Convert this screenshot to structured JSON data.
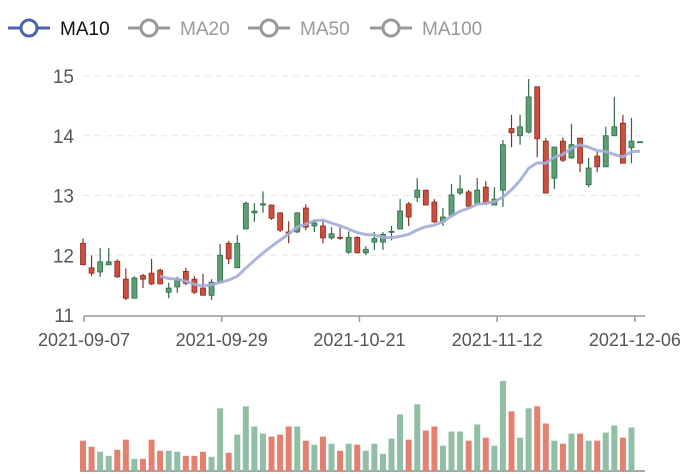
{
  "chart_data": {
    "type": "candlestick",
    "legend": {
      "placement": "top-left",
      "items": [
        {
          "name": "MA10",
          "active": true,
          "color": "#4a64ad"
        },
        {
          "name": "MA20",
          "active": false,
          "color": "#999999"
        },
        {
          "name": "MA50",
          "active": false,
          "color": "#999999"
        },
        {
          "name": "MA100",
          "active": false,
          "color": "#999999"
        }
      ]
    },
    "x_tick_labels": [
      {
        "index": 0,
        "label": "2021-09-07"
      },
      {
        "index": 16,
        "label": "2021-09-29"
      },
      {
        "index": 32,
        "label": "2021-10-21"
      },
      {
        "index": 48,
        "label": "2021-11-12"
      },
      {
        "index": 64,
        "label": "2021-12-06"
      }
    ],
    "y_axis": {
      "min": 11,
      "max": 15,
      "ticks": [
        "11",
        "12",
        "13",
        "14",
        "15"
      ],
      "grid": "dashed"
    },
    "colors": {
      "up": "#5e9e74",
      "up_border": "#2f6a45",
      "down": "#cc4f3d",
      "down_border": "#8a2e22",
      "volume_up": "#91bfa5",
      "volume_down": "#e3806f",
      "ma10": "#a3add8"
    },
    "candles_ohlc": [
      [
        12.2,
        11.84,
        12.28,
        11.84
      ],
      [
        11.79,
        11.7,
        12.0,
        11.65
      ],
      [
        11.72,
        11.89,
        12.12,
        11.64
      ],
      [
        11.84,
        11.89,
        12.12,
        11.84
      ],
      [
        11.9,
        11.64,
        11.93,
        11.62
      ],
      [
        11.6,
        11.28,
        11.78,
        11.25
      ],
      [
        11.28,
        11.62,
        11.65,
        11.28
      ],
      [
        11.66,
        11.6,
        11.69,
        11.45
      ],
      [
        11.7,
        11.52,
        11.94,
        11.5
      ],
      [
        11.75,
        11.52,
        11.78,
        11.52
      ],
      [
        11.38,
        11.45,
        11.54,
        11.28
      ],
      [
        11.47,
        11.6,
        11.64,
        11.37
      ],
      [
        11.73,
        11.53,
        11.79,
        11.5
      ],
      [
        11.6,
        11.38,
        11.65,
        11.35
      ],
      [
        11.45,
        11.33,
        11.69,
        11.33
      ],
      [
        11.33,
        11.55,
        11.6,
        11.25
      ],
      [
        11.54,
        12.0,
        12.19,
        11.54
      ],
      [
        12.2,
        11.94,
        12.24,
        11.85
      ],
      [
        11.79,
        12.2,
        12.34,
        11.79
      ],
      [
        12.44,
        12.87,
        12.9,
        12.44
      ],
      [
        12.71,
        12.74,
        12.87,
        12.56
      ],
      [
        12.84,
        12.86,
        13.07,
        12.71
      ],
      [
        12.84,
        12.62,
        12.85,
        12.59
      ],
      [
        12.71,
        12.42,
        12.72,
        12.39
      ],
      [
        12.39,
        12.37,
        12.57,
        12.2
      ],
      [
        12.39,
        12.71,
        12.72,
        12.37
      ],
      [
        12.79,
        12.47,
        12.85,
        12.42
      ],
      [
        12.49,
        12.54,
        12.59,
        12.39
      ],
      [
        12.49,
        12.29,
        12.59,
        12.2
      ],
      [
        12.29,
        12.36,
        12.47,
        12.26
      ],
      [
        12.3,
        12.29,
        12.47,
        12.26
      ],
      [
        12.05,
        12.3,
        12.4,
        12.02
      ],
      [
        12.3,
        12.04,
        12.32,
        12.03
      ],
      [
        12.04,
        12.1,
        12.15,
        12.0
      ],
      [
        12.22,
        12.28,
        12.39,
        12.09
      ],
      [
        12.22,
        12.35,
        12.39,
        12.09
      ],
      [
        12.39,
        12.4,
        12.49,
        12.25
      ],
      [
        12.44,
        12.74,
        12.94,
        12.44
      ],
      [
        12.86,
        12.64,
        12.89,
        12.49
      ],
      [
        12.97,
        13.09,
        13.29,
        12.89
      ],
      [
        13.09,
        12.84,
        13.09,
        12.84
      ],
      [
        12.89,
        12.56,
        12.94,
        12.54
      ],
      [
        12.56,
        12.64,
        12.79,
        12.49
      ],
      [
        12.67,
        13.01,
        13.19,
        12.67
      ],
      [
        13.04,
        13.11,
        13.34,
        13.01
      ],
      [
        13.06,
        12.82,
        13.09,
        12.79
      ],
      [
        12.87,
        13.09,
        13.29,
        12.84
      ],
      [
        13.14,
        12.87,
        13.24,
        12.84
      ],
      [
        12.84,
        12.94,
        13.14,
        12.84
      ],
      [
        13.09,
        13.85,
        13.93,
        12.81
      ],
      [
        14.12,
        14.05,
        14.35,
        13.81
      ],
      [
        14.0,
        14.15,
        14.35,
        13.85
      ],
      [
        14.06,
        14.65,
        14.95,
        14.04
      ],
      [
        14.82,
        13.95,
        14.82,
        13.64
      ],
      [
        13.91,
        13.04,
        13.96,
        13.04
      ],
      [
        13.29,
        13.81,
        13.81,
        13.11
      ],
      [
        13.91,
        13.59,
        13.97,
        13.56
      ],
      [
        13.63,
        13.85,
        14.2,
        13.61
      ],
      [
        13.96,
        13.54,
        13.96,
        13.39
      ],
      [
        13.18,
        13.46,
        13.63,
        13.14
      ],
      [
        13.66,
        13.48,
        13.73,
        13.39
      ],
      [
        13.48,
        14.0,
        14.15,
        13.48
      ],
      [
        14.0,
        14.15,
        14.65,
        14.0
      ],
      [
        14.21,
        13.54,
        14.35,
        13.54
      ],
      [
        13.8,
        13.91,
        14.3,
        13.54
      ],
      [
        13.9,
        13.9,
        13.9,
        13.9
      ]
    ],
    "volume": [
      30,
      24,
      19,
      15,
      21,
      31,
      12,
      12,
      31,
      20,
      20,
      19,
      15,
      15,
      19,
      14,
      62,
      18,
      36,
      64,
      44,
      37,
      34,
      36,
      44,
      44,
      30,
      26,
      34,
      27,
      20,
      27,
      26,
      20,
      27,
      17,
      32,
      56,
      31,
      66,
      40,
      44,
      25,
      39,
      39,
      30,
      46,
      33,
      25,
      89,
      59,
      33,
      62,
      64,
      47,
      30,
      27,
      37,
      37,
      30,
      30,
      38,
      45,
      33,
      43,
      null
    ],
    "ma_period": 10
  }
}
